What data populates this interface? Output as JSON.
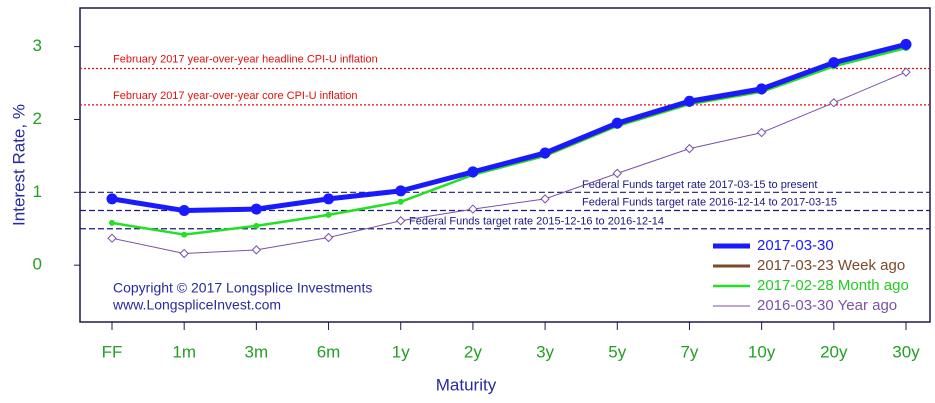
{
  "chart_data": {
    "type": "line",
    "x_label": "Maturity",
    "y_label": "Interest Rate, %",
    "categories": [
      "FF",
      "1m",
      "3m",
      "6m",
      "1y",
      "2y",
      "3y",
      "5y",
      "7y",
      "10y",
      "20y",
      "30y"
    ],
    "ylim": [
      -0.78,
      3.53
    ],
    "yticks": [
      0,
      1,
      2,
      3
    ],
    "legend": "lower right",
    "series": [
      {
        "name": "2016-03-30 Year ago",
        "color": "#7a52a6",
        "width": 1,
        "marker": "diamond",
        "values": [
          0.37,
          0.16,
          0.21,
          0.38,
          0.61,
          0.77,
          0.91,
          1.26,
          1.6,
          1.82,
          2.23,
          2.65
        ]
      },
      {
        "name": "2017-02-28 Month ago",
        "color": "#22e022",
        "width": 2.5,
        "marker": "circle",
        "values": [
          0.58,
          0.42,
          0.54,
          0.69,
          0.87,
          1.24,
          1.5,
          1.91,
          2.21,
          2.38,
          2.73,
          2.98
        ]
      },
      {
        "name": "2017-03-23 Week ago",
        "color": "#7a4a2a",
        "width": 3,
        "marker": "none",
        "values": [
          0.91,
          0.74,
          0.76,
          0.9,
          1.01,
          1.27,
          1.52,
          1.93,
          2.23,
          2.4,
          2.77,
          3.02
        ]
      },
      {
        "name": "2017-03-30",
        "color": "#1a1aff",
        "width": 5,
        "marker": "circle",
        "values": [
          0.91,
          0.75,
          0.77,
          0.91,
          1.02,
          1.28,
          1.54,
          1.95,
          2.25,
          2.42,
          2.78,
          3.03
        ]
      }
    ],
    "reference_lines": [
      {
        "value": 2.7,
        "label": "February 2017 year-over-year headline CPI-U inflation",
        "color": "#e01010",
        "style": "dotted"
      },
      {
        "value": 2.2,
        "label": "February 2017 year-over-year core CPI-U inflation",
        "color": "#e01010",
        "style": "dotted"
      },
      {
        "value": 1.0,
        "label": "Federal Funds target rate 2017-03-15 to present",
        "color": "#1a1a80",
        "style": "dashed"
      },
      {
        "value": 0.75,
        "label": "Federal Funds target rate 2016-12-14 to 2017-03-15",
        "color": "#1a1a80",
        "style": "dashed"
      },
      {
        "value": 0.5,
        "label": "Federal Funds target rate 2015-12-16 to 2016-12-14",
        "color": "#1a1a80",
        "style": "dashed"
      }
    ],
    "annotations": [
      "Copyright © 2017 Longsplice Investments",
      "www.LongspliceInvest.com"
    ]
  }
}
